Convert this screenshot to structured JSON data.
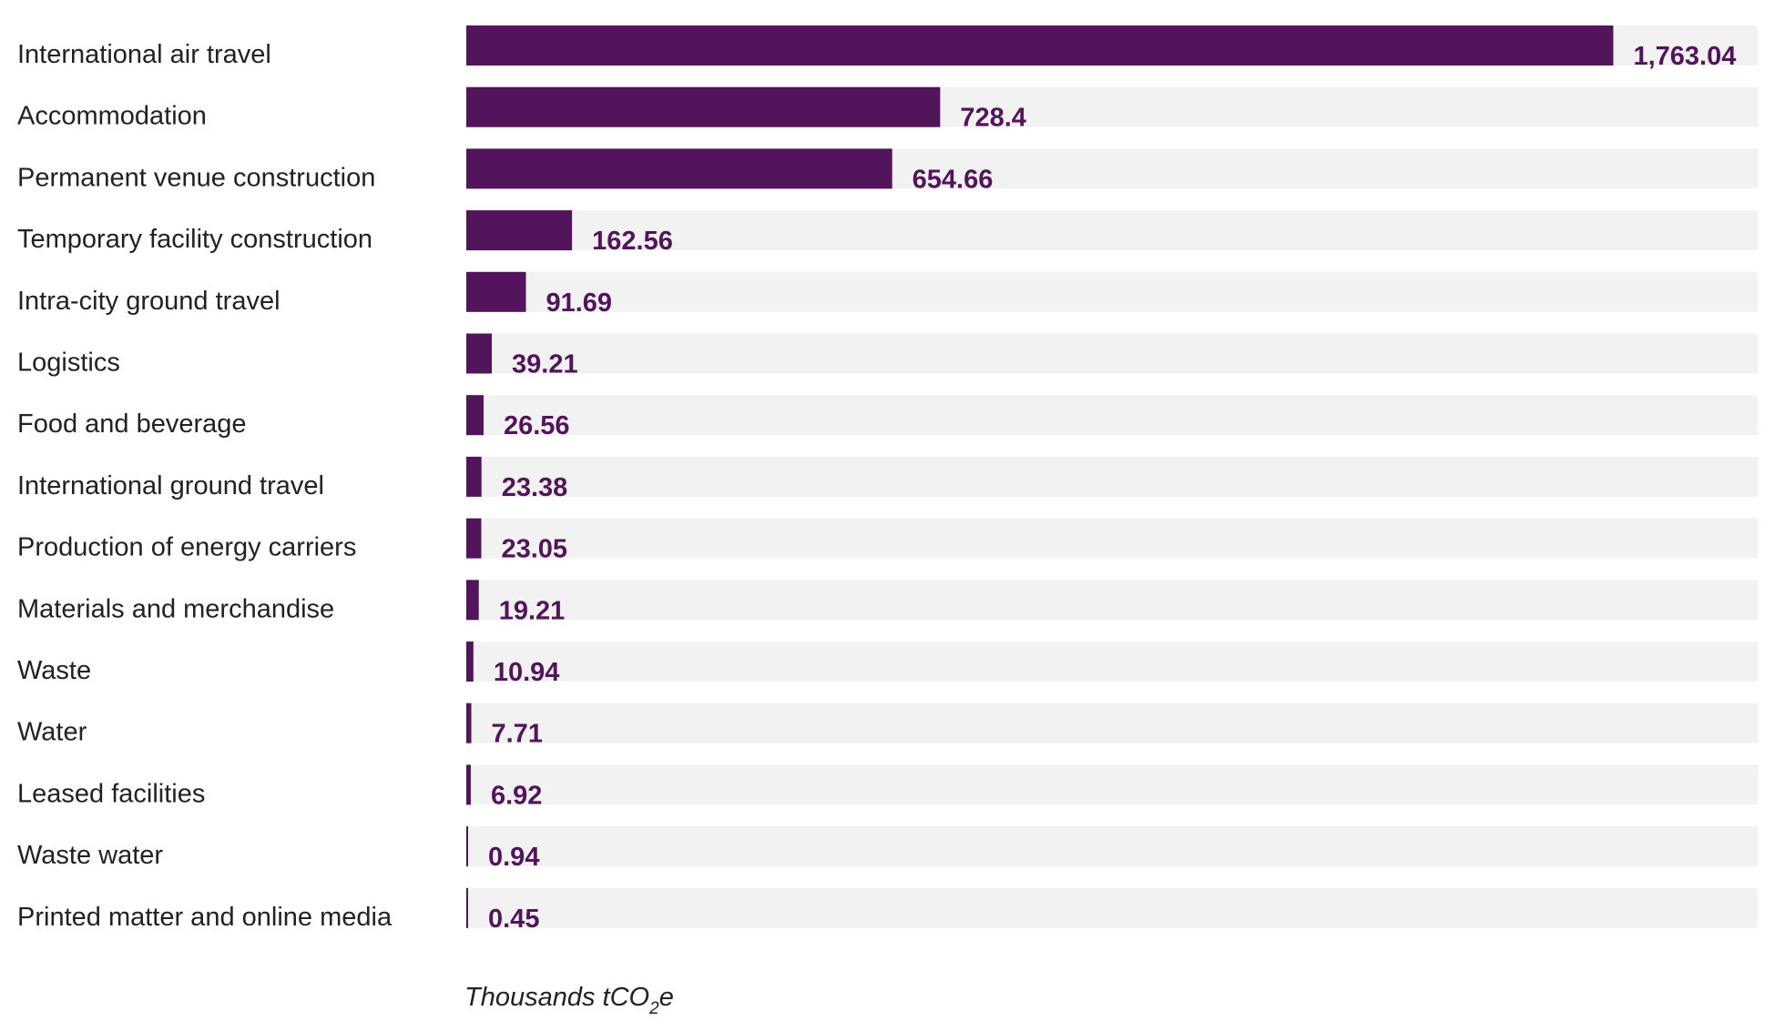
{
  "chart_data": {
    "type": "bar",
    "orientation": "horizontal",
    "title": "",
    "xlabel": "Thousands tCO2e",
    "xlabel_parts": {
      "before": "Thousands tCO",
      "subscript": "2",
      "after": "e"
    },
    "ylabel": "",
    "xlim": [
      0,
      1985
    ],
    "grid": false,
    "legend": "none",
    "categories": [
      "International air travel",
      "Accommodation",
      "Permanent venue construction",
      "Temporary facility construction",
      "Intra-city ground travel",
      "Logistics",
      "Food and beverage",
      "International ground travel",
      "Production of energy carriers",
      "Materials and merchandise",
      "Waste",
      "Water",
      "Leased facilities",
      "Waste water",
      "Printed matter and online media"
    ],
    "values": [
      1763.04,
      728.4,
      654.66,
      162.56,
      91.69,
      39.21,
      26.56,
      23.38,
      23.05,
      19.21,
      10.94,
      7.71,
      6.92,
      0.94,
      0.45
    ],
    "value_labels": [
      "1,763.04",
      "728.4",
      "654.66",
      "162.56",
      "91.69",
      "39.21",
      "26.56",
      "23.38",
      "23.05",
      "19.21",
      "10.94",
      "7.71",
      "6.92",
      "0.94",
      "0.45"
    ]
  },
  "colors": {
    "bar": "#52145a",
    "track": "#f3f2f3",
    "value_text": "#52145a",
    "label_text": "#222222"
  }
}
